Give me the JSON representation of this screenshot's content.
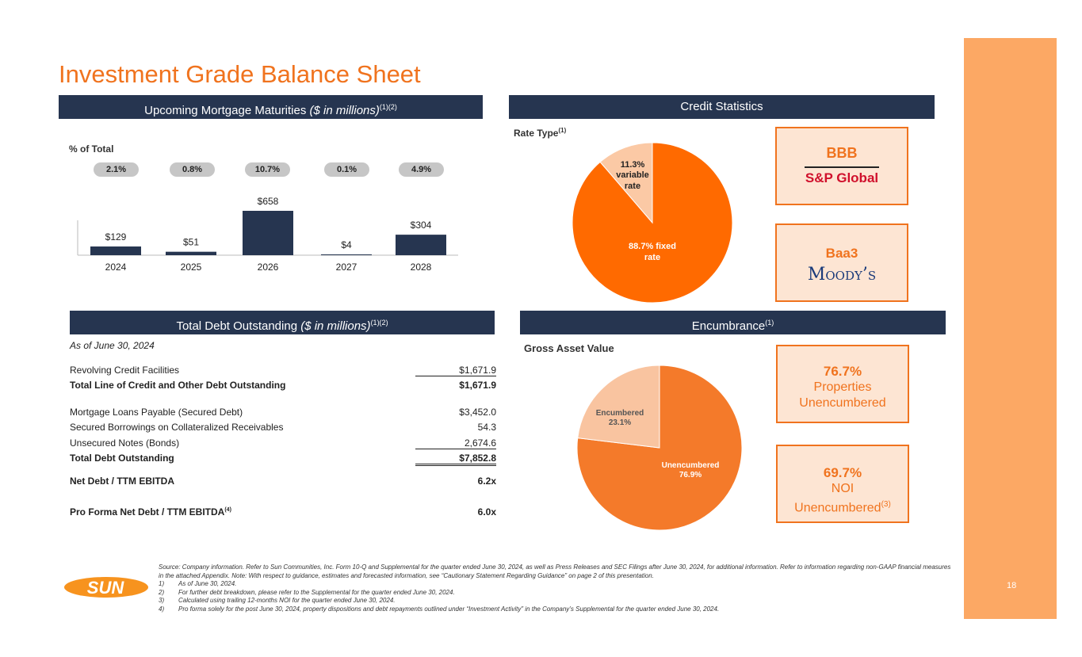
{
  "title": "Investment Grade Balance Sheet",
  "page_number": "18",
  "maturities": {
    "header_main": "Upcoming Mortgage Maturities ",
    "header_italic": "($ in millions)",
    "header_sup": "(1)(2)",
    "pct_label": "% of Total",
    "percents": [
      "2.1%",
      "0.8%",
      "10.7%",
      "0.1%",
      "4.9%"
    ]
  },
  "chart_data": [
    {
      "type": "bar",
      "categories": [
        "2024",
        "2025",
        "2026",
        "2027",
        "2028"
      ],
      "values": [
        129,
        51,
        658,
        4,
        304
      ],
      "value_labels": [
        "$129",
        "$51",
        "$658",
        "$4",
        "$304"
      ],
      "ylim": [
        0,
        700
      ]
    },
    {
      "type": "pie",
      "labels": [
        "88.7% fixed rate",
        "11.3% variable rate"
      ],
      "values": [
        88.7,
        11.3
      ],
      "colors": [
        "#ff6a00",
        "#fbc9a5"
      ]
    },
    {
      "type": "pie",
      "labels": [
        "Unencumbered 76.9%",
        "Encumbered 23.1%"
      ],
      "values": [
        76.9,
        23.1
      ],
      "colors": [
        "#f47a2a",
        "#f9c4a0"
      ]
    }
  ],
  "credit": {
    "header": "Credit Statistics",
    "rate_type_label": "Rate Type",
    "rate_type_sup": "(1)",
    "fixed_pct": "88.7% fixed",
    "fixed_word": "rate",
    "var_pct": "11.3%",
    "var_word1": "variable",
    "var_word2": "rate",
    "sp_rating": "BBB",
    "sp_name": "S&P Global",
    "moodys_rating": "Baa3",
    "moodys_name": "Moody’s"
  },
  "debt": {
    "header_main": "Total Debt Outstanding ",
    "header_italic": "($ in millions)",
    "header_sup": "(1)(2)",
    "as_of": "As of June 30, 2024",
    "rows": [
      {
        "label": "Revolving Credit Facilities",
        "value": "$1,671.9"
      },
      {
        "label": "Total Line of Credit and Other Debt Outstanding",
        "value": "$1,671.9"
      },
      {
        "label": "Mortgage Loans Payable (Secured Debt)",
        "value": "$3,452.0"
      },
      {
        "label": "Secured Borrowings on Collateralized Receivables",
        "value": "54.3"
      },
      {
        "label": "Unsecured Notes (Bonds)",
        "value": "2,674.6"
      },
      {
        "label": "Total Debt Outstanding",
        "value": "$7,852.8"
      },
      {
        "label": "Net Debt / TTM EBITDA",
        "value": "6.2x"
      },
      {
        "label": "Pro Forma Net Debt / TTM EBITDA",
        "value": "6.0x",
        "sup": "(4)"
      }
    ]
  },
  "encumbrance": {
    "header": "Encumbrance",
    "header_sup": "(1)",
    "gav_label": "Gross Asset Value",
    "unenc_label": "Unencumbered",
    "unenc_pct": "76.9%",
    "enc_label": "Encumbered",
    "enc_pct": "23.1%",
    "box1_big": "76.7%",
    "box1_l1": "Properties",
    "box1_l2": "Unencumbered",
    "box2_big": "69.7%",
    "box2_l1": "NOI",
    "box2_l2": "Unencumbered",
    "box2_sup": "(3)"
  },
  "logo_text": "SUN",
  "footnotes": {
    "source": "Source: Company information. Refer to Sun Communities, Inc. Form 10-Q and Supplemental for the quarter ended June 30, 2024, as well as Press Releases and SEC Filings after June 30, 2024, for additional information. Refer to information regarding non-GAAP financial measures in the attached Appendix. Note: With respect to guidance, estimates and forecasted information, see “Cautionary Statement Regarding Guidance” on page 2 of this presentation.",
    "notes": [
      {
        "num": "1)",
        "text": "As of June 30, 2024."
      },
      {
        "num": "2)",
        "text": "For further debt breakdown, please refer to the Supplemental for the quarter ended June 30, 2024."
      },
      {
        "num": "3)",
        "text": "Calculated using trailing 12-months NOI for the quarter ended June 30, 2024."
      },
      {
        "num": "4)",
        "text": "Pro forma solely for the post June 30, 2024, property dispositions and debt repayments outlined under “Investment Activity” in the Company’s Supplemental for the quarter ended June 30, 2024."
      }
    ]
  }
}
